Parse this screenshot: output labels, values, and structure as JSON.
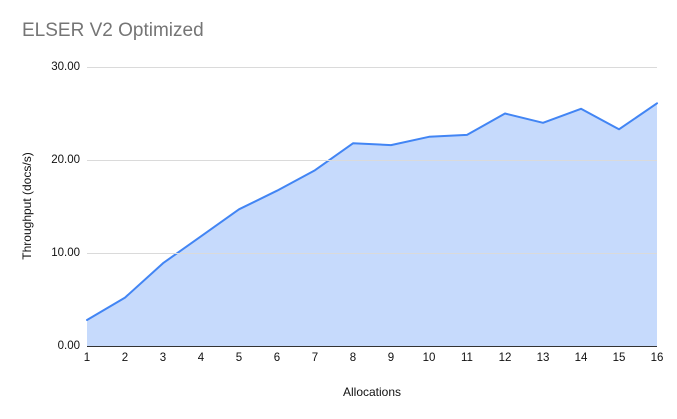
{
  "header": {
    "title": "ELSER V2 Optimized"
  },
  "chart_data": {
    "type": "area",
    "title": "ELSER V2 Optimized",
    "xlabel": "Allocations",
    "ylabel": "Throughput (docs/s)",
    "categories": [
      "1",
      "2",
      "3",
      "4",
      "5",
      "6",
      "7",
      "8",
      "9",
      "10",
      "11",
      "12",
      "13",
      "14",
      "15",
      "16"
    ],
    "values": [
      2.8,
      5.2,
      8.9,
      11.8,
      14.7,
      16.7,
      18.9,
      21.8,
      21.6,
      22.5,
      22.7,
      25.0,
      24.0,
      25.5,
      23.3,
      26.1
    ],
    "ylim": [
      0,
      30
    ],
    "yticks": [
      {
        "value": 0,
        "label": "0.00"
      },
      {
        "value": 10,
        "label": "10.00"
      },
      {
        "value": 20,
        "label": "20.00"
      },
      {
        "value": 30,
        "label": "30.00"
      }
    ],
    "grid": "horizontal",
    "legend": "none",
    "colors": {
      "line": "#4285f4",
      "fill": "rgba(66,133,244,0.3)",
      "gridline": "#dadada",
      "axis": "#333333",
      "title_text": "#757575",
      "tick_text": "#111111"
    }
  }
}
